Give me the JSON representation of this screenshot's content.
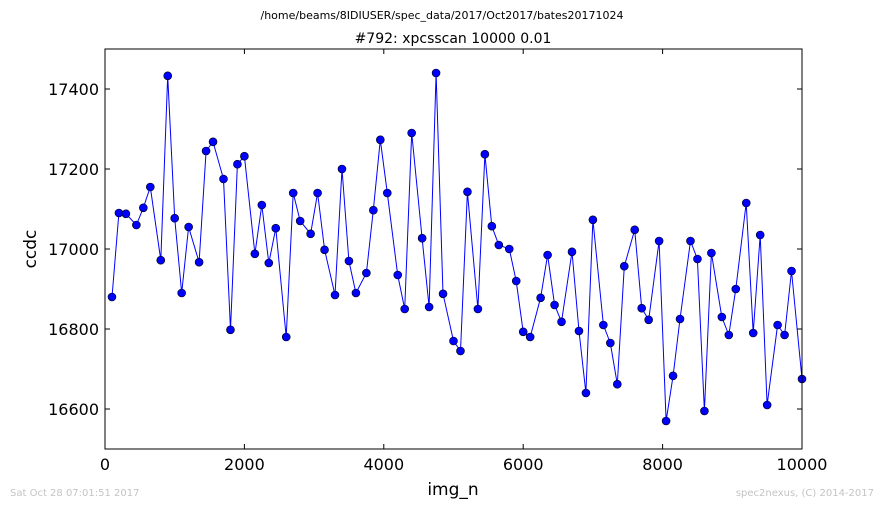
{
  "header": {
    "path": "/home/beams/8IDIUSER/spec_data/2017/Oct2017/bates20171024"
  },
  "footer": {
    "timestamp": "Sat Oct 28 07:01:51 2017",
    "credit": "spec2nexus, (C) 2014-2017"
  },
  "chart_data": {
    "type": "line",
    "title": "#792: xpcsscan 10000 0.01",
    "xlabel": "img_n",
    "ylabel": "ccdc",
    "xlim": [
      0,
      10000
    ],
    "ylim": [
      16500,
      17500
    ],
    "xticks": [
      0,
      2000,
      4000,
      6000,
      8000,
      10000
    ],
    "yticks": [
      16600,
      16800,
      17000,
      17200,
      17400
    ],
    "grid": false,
    "color": "#0000ff",
    "marker": "circle",
    "series": [
      {
        "x": [
          100,
          200,
          300,
          450,
          550,
          650,
          800,
          900,
          1000,
          1100,
          1200,
          1350,
          1450,
          1550,
          1700,
          1800,
          1900,
          2000,
          2150,
          2250,
          2350,
          2450,
          2600,
          2700,
          2800,
          2950,
          3050,
          3150,
          3300,
          3400,
          3500,
          3600,
          3750,
          3850,
          3950,
          4050,
          4200,
          4300,
          4400,
          4550,
          4650,
          4750,
          4850,
          5000,
          5100,
          5200,
          5350,
          5450,
          5550,
          5650,
          5800,
          5900,
          6000,
          6100,
          6250,
          6350,
          6450,
          6550,
          6700,
          6800,
          6900,
          7000,
          7150,
          7250,
          7350,
          7450,
          7600,
          7700,
          7800,
          7950,
          8050,
          8150,
          8250,
          8400,
          8500,
          8600,
          8700,
          8850,
          8950,
          9050,
          9200,
          9300,
          9400,
          9500,
          9650,
          9750,
          9850,
          10000
        ],
        "values": [
          16880,
          17090,
          17088,
          17060,
          17103,
          17155,
          16972,
          17433,
          17077,
          16890,
          17055,
          16967,
          17245,
          17268,
          17175,
          16798,
          17212,
          17232,
          16988,
          17110,
          16965,
          17052,
          16780,
          17140,
          17070,
          17038,
          17140,
          16998,
          16885,
          17200,
          16970,
          16890,
          16940,
          17097,
          17273,
          17140,
          16935,
          16850,
          17290,
          17027,
          16855,
          17440,
          16888,
          16770,
          16745,
          17143,
          16850,
          17237,
          17057,
          17010,
          17000,
          16920,
          16793,
          16780,
          16878,
          16985,
          16860,
          16818,
          16993,
          16795,
          16640,
          17073,
          16810,
          16765,
          16662,
          16957,
          17048,
          16852,
          16823,
          17020,
          16570,
          16683,
          16825,
          17020,
          16975,
          16595,
          16990,
          16830,
          16785,
          16900,
          17115,
          16790,
          17035,
          16610,
          16810,
          16785,
          16945,
          16675
        ]
      }
    ]
  }
}
